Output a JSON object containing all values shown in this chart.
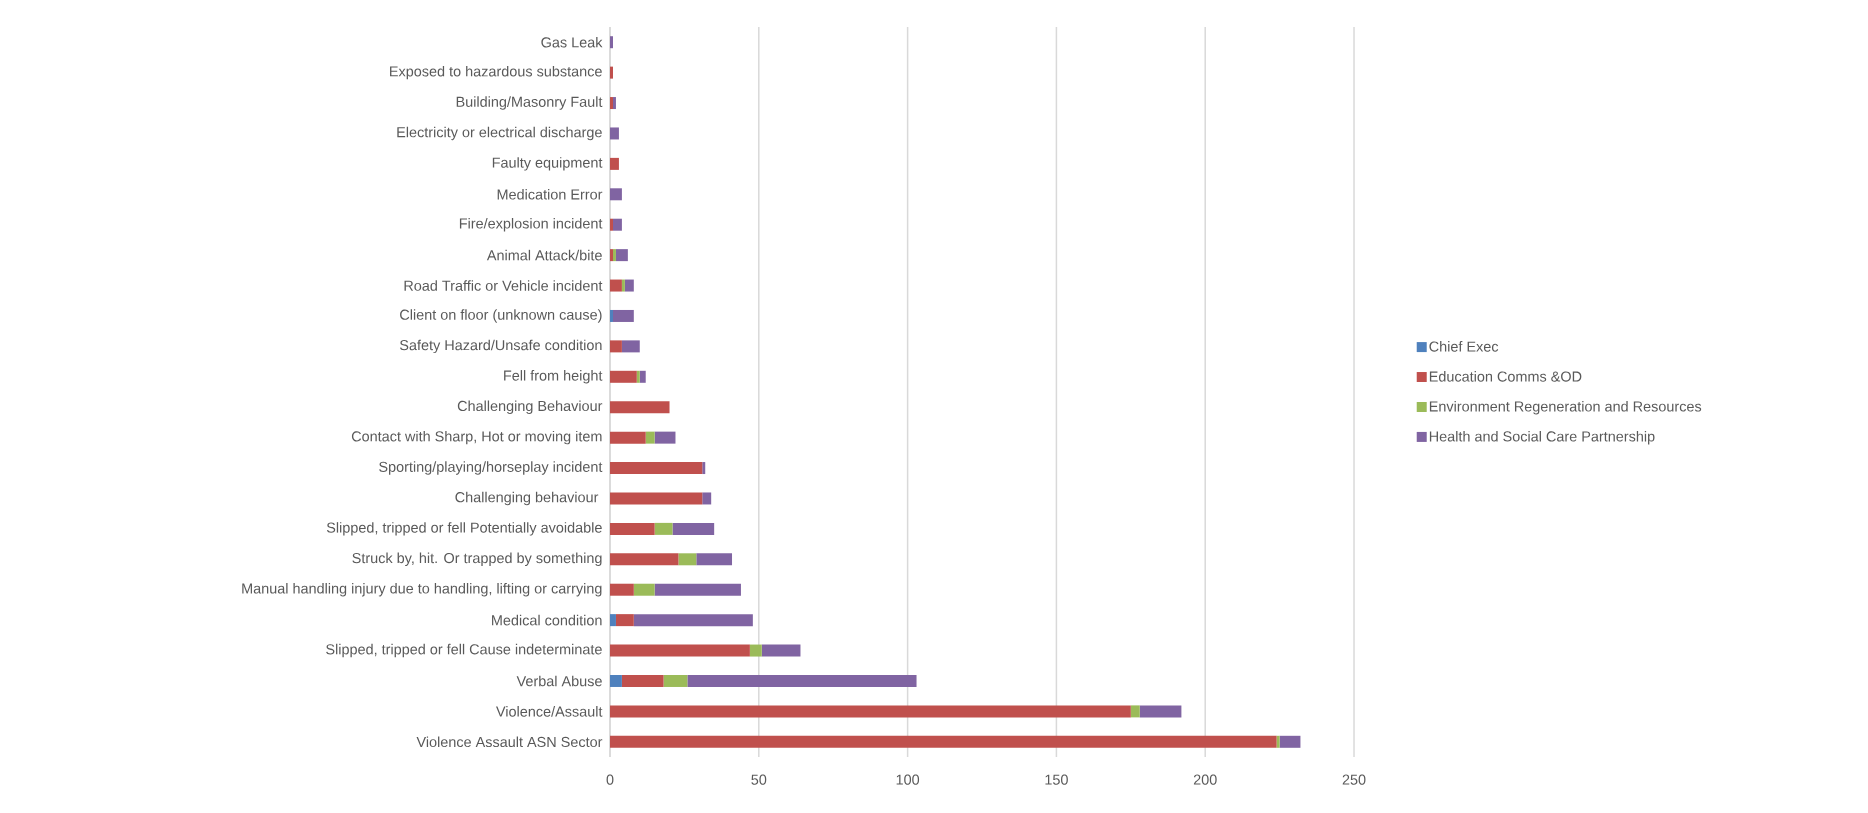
{
  "chart_data": {
    "type": "bar",
    "orientation": "horizontal",
    "stacked": true,
    "categories": [
      "Gas Leak",
      "Exposed to hazardous substance",
      "Building/Masonry Fault",
      "Electricity or electrical discharge",
      "Faulty equipment",
      "Medication Error",
      "Fire/explosion incident",
      "Animal Attack/bite",
      "Road Traffic or Vehicle incident",
      "Client on floor (unknown cause)",
      "Safety Hazard/Unsafe condition",
      "Fell from height",
      "Challenging Behaviour",
      "Contact with Sharp, Hot or moving item",
      "Sporting/playing/horseplay incident",
      "Challenging behaviour ",
      "Slipped, tripped or fell Potentially avoidable",
      "Struck by, hit. Or trapped by something",
      "Manual handling injury due to handling, lifting or carrying",
      "Medical condition",
      "Slipped, tripped or fell Cause indeterminate",
      "Verbal Abuse",
      "Violence/Assault",
      "Violence Assault ASN Sector"
    ],
    "series": [
      {
        "name": "Chief Exec",
        "color": "#4f81bd",
        "values": [
          0,
          0,
          0,
          0,
          0,
          0,
          0,
          0,
          0,
          1,
          0,
          0,
          0,
          0,
          0,
          0,
          0,
          0,
          0,
          2,
          0,
          4,
          0,
          0
        ]
      },
      {
        "name": "Education Comms &OD",
        "color": "#c0504d",
        "values": [
          0,
          1,
          1,
          0,
          3,
          0,
          1,
          1,
          4,
          0,
          4,
          9,
          20,
          12,
          31,
          31,
          15,
          23,
          8,
          6,
          47,
          14,
          175,
          224
        ]
      },
      {
        "name": "Environment Regeneration and Resources",
        "color": "#9bbb59",
        "values": [
          0,
          0,
          0,
          0,
          0,
          0,
          0,
          1,
          1,
          0,
          0,
          1,
          0,
          3,
          0,
          0,
          6,
          6,
          7,
          0,
          4,
          8,
          3,
          1
        ]
      },
      {
        "name": "Health and Social Care Partnership",
        "color": "#8064a2",
        "values": [
          1,
          0,
          1,
          3,
          0,
          4,
          3,
          4,
          3,
          7,
          6,
          2,
          0,
          7,
          1,
          3,
          14,
          12,
          29,
          40,
          13,
          77,
          14,
          7
        ]
      }
    ],
    "xlim": [
      0,
      250
    ],
    "xticks": [
      0,
      50,
      100,
      150,
      200,
      250
    ],
    "grid": "x",
    "legend": "right"
  }
}
